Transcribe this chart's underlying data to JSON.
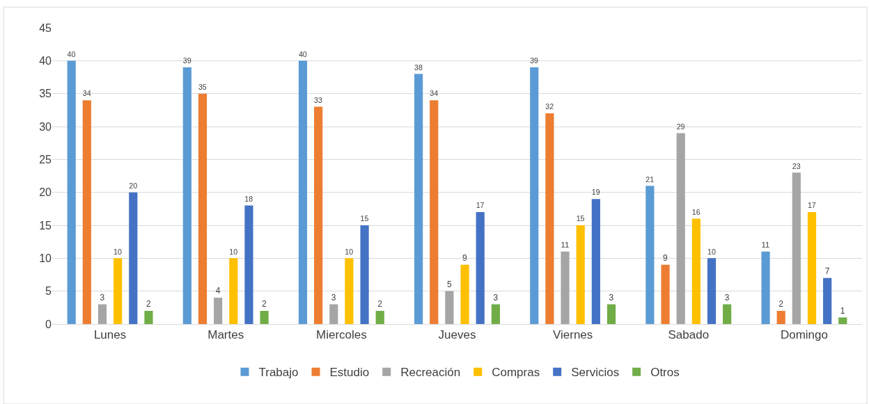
{
  "chart_data": {
    "type": "bar",
    "categories": [
      "Lunes",
      "Martes",
      "Miercoles",
      "Jueves",
      "Viernes",
      "Sabado",
      "Domingo"
    ],
    "series": [
      {
        "name": "Trabajo",
        "color": "#5b9bd5",
        "values": [
          40,
          39,
          40,
          38,
          39,
          21,
          11
        ]
      },
      {
        "name": "Estudio",
        "color": "#ed7d31",
        "values": [
          34,
          35,
          33,
          34,
          32,
          9,
          2
        ]
      },
      {
        "name": "Recreación",
        "color": "#a5a5a5",
        "values": [
          3,
          4,
          3,
          5,
          11,
          29,
          23
        ]
      },
      {
        "name": "Compras",
        "color": "#ffc000",
        "values": [
          10,
          10,
          10,
          9,
          15,
          16,
          17
        ]
      },
      {
        "name": "Servicios",
        "color": "#4472c4",
        "values": [
          20,
          18,
          15,
          17,
          19,
          10,
          7
        ]
      },
      {
        "name": "Otros",
        "color": "#70ad47",
        "values": [
          2,
          2,
          2,
          3,
          3,
          3,
          1
        ]
      }
    ],
    "ylim": [
      0,
      45
    ],
    "yticks": [
      0,
      5,
      10,
      15,
      20,
      25,
      30,
      35,
      40,
      45
    ],
    "grid": "y",
    "legend": "bottom",
    "data_labels": true
  }
}
